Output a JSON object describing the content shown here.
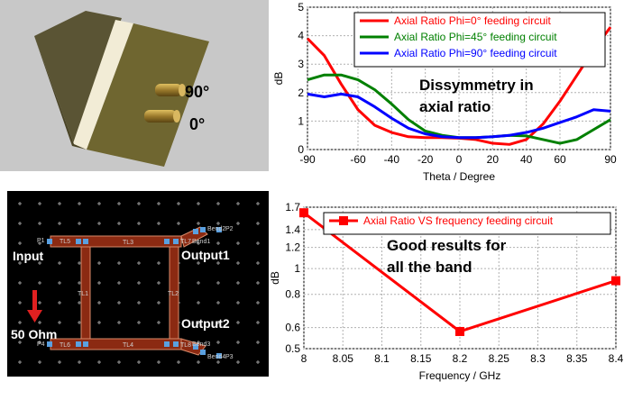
{
  "antenna": {
    "label_90": "90°",
    "label_0": "0°"
  },
  "circuit": {
    "input_label": "Input",
    "output1_label": "Output1",
    "output2_label": "Output2",
    "impedance_label": "50 Ohm",
    "port_labels": [
      "P1",
      "P2",
      "P3",
      "P4"
    ],
    "line_labels": [
      "TL5",
      "TL3",
      "TL7",
      "TL1",
      "TL2",
      "TL6",
      "TL4",
      "TL8"
    ],
    "bend_labels": [
      "Bend1",
      "Bend2",
      "Bend3",
      "Bend4"
    ],
    "colors": {
      "background": "#000000",
      "trace": "#8b2a12",
      "trace_edge": "#d88a6a",
      "node": "#5aa0e0",
      "arrow": "#e02020"
    }
  },
  "chart_data": [
    {
      "type": "line",
      "xlabel": "Theta / Degree",
      "ylabel": "dB",
      "xlim": [
        -90,
        90
      ],
      "ylim": [
        0,
        5
      ],
      "xticks": [
        -90,
        -60,
        -40,
        -20,
        0,
        20,
        40,
        60,
        90
      ],
      "yticks": [
        0,
        1,
        2,
        3,
        4,
        5
      ],
      "grid": true,
      "legend_position": "top-right",
      "annotation": [
        "Dissymmetry in",
        "axial ratio"
      ],
      "series": [
        {
          "name": "Axial Ratio Phi=0° feeding circuit",
          "color": "#ff0000",
          "x": [
            -90,
            -80,
            -70,
            -60,
            -50,
            -40,
            -30,
            -20,
            -10,
            0,
            10,
            20,
            30,
            40,
            50,
            60,
            70,
            80,
            90
          ],
          "y": [
            3.9,
            3.3,
            2.3,
            1.4,
            0.85,
            0.6,
            0.45,
            0.42,
            0.42,
            0.4,
            0.35,
            0.22,
            0.18,
            0.35,
            0.9,
            1.7,
            2.6,
            3.5,
            4.3
          ]
        },
        {
          "name": "Axial Ratio Phi=45° feeding circuit",
          "color": "#008000",
          "x": [
            -90,
            -80,
            -70,
            -60,
            -50,
            -40,
            -30,
            -20,
            -10,
            0,
            10,
            20,
            30,
            40,
            50,
            60,
            70,
            80,
            90
          ],
          "y": [
            2.45,
            2.62,
            2.62,
            2.45,
            2.1,
            1.6,
            1.05,
            0.65,
            0.5,
            0.42,
            0.42,
            0.45,
            0.5,
            0.48,
            0.35,
            0.22,
            0.35,
            0.7,
            1.05
          ]
        },
        {
          "name": "Axial Ratio Phi=90° feeding circuit",
          "color": "#0000ff",
          "x": [
            -90,
            -80,
            -70,
            -60,
            -50,
            -40,
            -30,
            -20,
            -10,
            0,
            10,
            20,
            30,
            40,
            50,
            60,
            70,
            80,
            90
          ],
          "y": [
            1.95,
            1.85,
            1.95,
            1.85,
            1.5,
            1.1,
            0.75,
            0.55,
            0.45,
            0.42,
            0.42,
            0.45,
            0.5,
            0.6,
            0.75,
            0.95,
            1.15,
            1.4,
            1.35
          ]
        }
      ]
    },
    {
      "type": "line",
      "xlabel": "Frequency / GHz",
      "ylabel": "dB",
      "xlim": [
        8,
        8.4
      ],
      "ylim": [
        0.5,
        1.7
      ],
      "yscale": "log",
      "xticks": [
        8,
        8.05,
        8.1,
        8.15,
        8.2,
        8.25,
        8.3,
        8.35,
        8.4
      ],
      "yticks": [
        0.5,
        0.6,
        0.8,
        1,
        1.2,
        1.4,
        1.7
      ],
      "grid": true,
      "legend_position": "top-right",
      "annotation": [
        "Good results for",
        "all the band"
      ],
      "series": [
        {
          "name": "Axial Ratio VS frequency feeding circuit",
          "color": "#ff0000",
          "marker": "square",
          "x": [
            8,
            8.2,
            8.4
          ],
          "y": [
            1.62,
            0.58,
            0.9
          ]
        }
      ]
    }
  ]
}
